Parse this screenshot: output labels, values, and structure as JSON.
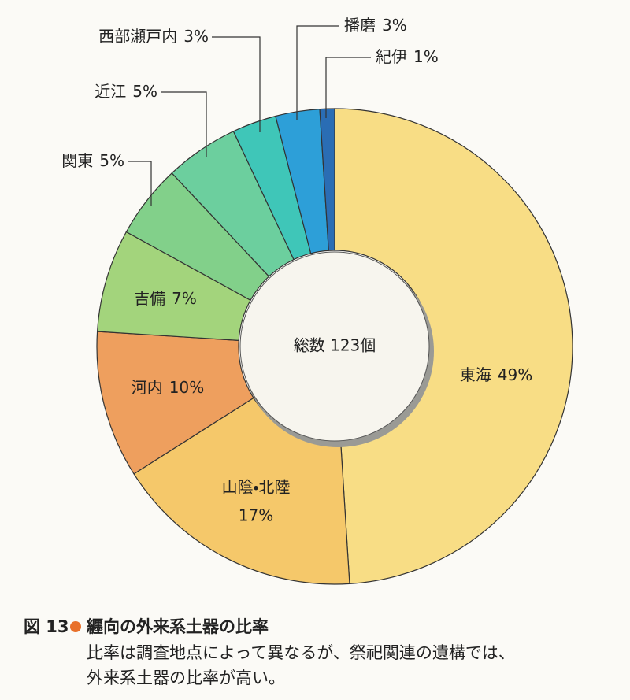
{
  "chart_data": {
    "type": "donut",
    "center_label": "総数 123個",
    "categories": [
      "東海",
      "山陰・北陸",
      "河内",
      "吉備",
      "関東",
      "近江",
      "西部瀬戸内",
      "播磨",
      "紀伊"
    ],
    "values": [
      49,
      17,
      10,
      7,
      5,
      5,
      3,
      3,
      1
    ],
    "value_labels": [
      "49%",
      "17%",
      "10%",
      "7%",
      "5%",
      "5%",
      "3%",
      "3%",
      "1%"
    ],
    "colors": [
      "#f8dd85",
      "#f5c86a",
      "#ee9f5e",
      "#a3d47c",
      "#82d08a",
      "#6ccf9e",
      "#3fc6b8",
      "#2d9fd8",
      "#2a6db4"
    ]
  },
  "caption": {
    "figure": "図 13",
    "title": "纒向の外来系土器の比率",
    "lines": [
      "比率は調査地点によって異なるが、祭祀関連の遺構では、",
      "外来系土器の比率が高い。"
    ]
  }
}
